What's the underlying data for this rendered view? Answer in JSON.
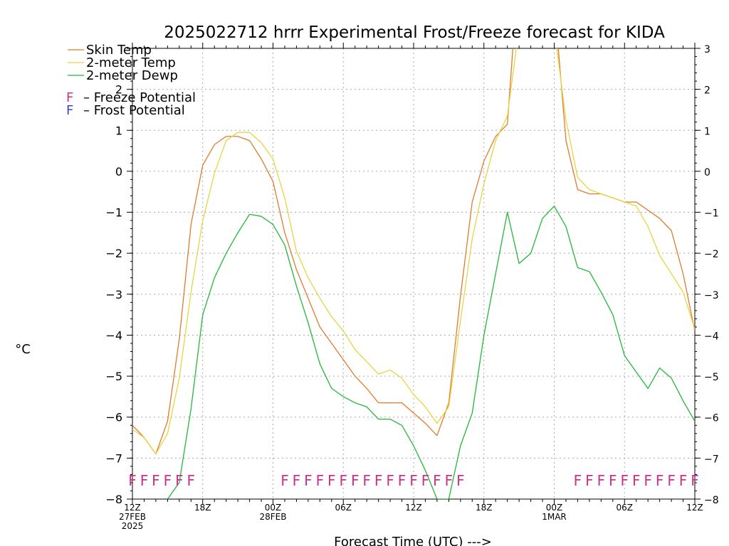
{
  "chart_data": {
    "type": "line",
    "title": "2025022712 hrrr Experimental Frost/Freeze forecast for KIDA",
    "xlabel": "Forecast Time (UTC) --->",
    "ylabel": "°C",
    "ylim": [
      -8,
      3
    ],
    "xlim": [
      0,
      48
    ],
    "yticks": [
      "3",
      "2",
      "1",
      "0",
      "−1",
      "−2",
      "−3",
      "−4",
      "−5",
      "−6",
      "−7",
      "−8"
    ],
    "yticks_left": [
      "2",
      "1",
      "0",
      "−1",
      "−2",
      "−3",
      "−4",
      "−5",
      "−6",
      "−7",
      "−8"
    ],
    "xticks": [
      {
        "x": 0,
        "l1": "12Z",
        "l2": "27FEB",
        "l3": "2025"
      },
      {
        "x": 6,
        "l1": "18Z",
        "l2": "",
        "l3": ""
      },
      {
        "x": 12,
        "l1": "00Z",
        "l2": "28FEB",
        "l3": ""
      },
      {
        "x": 18,
        "l1": "06Z",
        "l2": "",
        "l3": ""
      },
      {
        "x": 24,
        "l1": "12Z",
        "l2": "",
        "l3": ""
      },
      {
        "x": 30,
        "l1": "18Z",
        "l2": "",
        "l3": ""
      },
      {
        "x": 36,
        "l1": "00Z",
        "l2": "1MAR",
        "l3": ""
      },
      {
        "x": 42,
        "l1": "06Z",
        "l2": "",
        "l3": ""
      },
      {
        "x": 48,
        "l1": "12Z",
        "l2": "",
        "l3": ""
      }
    ],
    "grid": true,
    "legend_position": "top-left",
    "series": [
      {
        "name": "Skin Temp",
        "color": "#e07b2e",
        "points": [
          [
            0,
            -6.2
          ],
          [
            1,
            -6.5
          ],
          [
            2,
            -6.9
          ],
          [
            3,
            -6.1
          ],
          [
            4,
            -4.1
          ],
          [
            5,
            -1.3
          ],
          [
            6,
            0.15
          ],
          [
            7,
            0.65
          ],
          [
            8,
            0.85
          ],
          [
            9,
            0.85
          ],
          [
            10,
            0.75
          ],
          [
            11,
            0.3
          ],
          [
            12,
            -0.25
          ],
          [
            13,
            -1.5
          ],
          [
            14,
            -2.4
          ],
          [
            15,
            -3.1
          ],
          [
            16,
            -3.8
          ],
          [
            17,
            -4.2
          ],
          [
            18,
            -4.6
          ],
          [
            19,
            -5.0
          ],
          [
            20,
            -5.3
          ],
          [
            21,
            -5.65
          ],
          [
            22,
            -5.65
          ],
          [
            23,
            -5.65
          ],
          [
            24,
            -5.9
          ],
          [
            25,
            -6.15
          ],
          [
            26,
            -6.45
          ],
          [
            27,
            -5.65
          ],
          [
            28,
            -3.05
          ],
          [
            29,
            -0.75
          ],
          [
            30,
            0.25
          ],
          [
            31,
            0.85
          ],
          [
            32,
            1.15
          ],
          [
            32.6,
            3.5
          ],
          [
            36.2,
            3.5
          ],
          [
            37,
            0.75
          ],
          [
            38,
            -0.45
          ],
          [
            39,
            -0.55
          ],
          [
            40,
            -0.55
          ],
          [
            41,
            -0.65
          ],
          [
            42,
            -0.75
          ],
          [
            43,
            -0.75
          ],
          [
            44,
            -0.95
          ],
          [
            45,
            -1.15
          ],
          [
            46,
            -1.45
          ],
          [
            47,
            -2.5
          ],
          [
            48,
            -3.9
          ]
        ]
      },
      {
        "name": "2-meter Temp",
        "color": "#e8d440",
        "points": [
          [
            0,
            -6.3
          ],
          [
            1,
            -6.5
          ],
          [
            2,
            -6.9
          ],
          [
            3,
            -6.4
          ],
          [
            4,
            -5.05
          ],
          [
            5,
            -2.95
          ],
          [
            6,
            -1.2
          ],
          [
            7,
            -0.05
          ],
          [
            8,
            0.75
          ],
          [
            9,
            0.95
          ],
          [
            10,
            0.95
          ],
          [
            11,
            0.7
          ],
          [
            12,
            0.3
          ],
          [
            13,
            -0.65
          ],
          [
            14,
            -1.95
          ],
          [
            15,
            -2.6
          ],
          [
            16,
            -3.1
          ],
          [
            17,
            -3.55
          ],
          [
            18,
            -3.9
          ],
          [
            19,
            -4.35
          ],
          [
            20,
            -4.65
          ],
          [
            21,
            -4.95
          ],
          [
            22,
            -4.85
          ],
          [
            23,
            -5.05
          ],
          [
            24,
            -5.45
          ],
          [
            25,
            -5.75
          ],
          [
            26,
            -6.15
          ],
          [
            27,
            -5.75
          ],
          [
            28,
            -3.65
          ],
          [
            29,
            -1.65
          ],
          [
            30,
            -0.3
          ],
          [
            31,
            0.75
          ],
          [
            32,
            1.35
          ],
          [
            33,
            3.5
          ],
          [
            36,
            3.5
          ],
          [
            37,
            1.25
          ],
          [
            38,
            -0.15
          ],
          [
            39,
            -0.45
          ],
          [
            40,
            -0.55
          ],
          [
            41,
            -0.65
          ],
          [
            42,
            -0.75
          ],
          [
            43,
            -0.85
          ],
          [
            44,
            -1.35
          ],
          [
            45,
            -2.05
          ],
          [
            46,
            -2.5
          ],
          [
            47,
            -2.95
          ],
          [
            48,
            -3.85
          ]
        ]
      },
      {
        "name": "2-meter Dewp",
        "color": "#22b83a",
        "points": [
          [
            3,
            -8.0
          ],
          [
            4,
            -7.6
          ],
          [
            5,
            -5.8
          ],
          [
            6,
            -3.5
          ],
          [
            7,
            -2.6
          ],
          [
            8,
            -2.0
          ],
          [
            9,
            -1.5
          ],
          [
            10,
            -1.05
          ],
          [
            11,
            -1.1
          ],
          [
            12,
            -1.3
          ],
          [
            13,
            -1.8
          ],
          [
            14,
            -2.8
          ],
          [
            15,
            -3.7
          ],
          [
            16,
            -4.7
          ],
          [
            17,
            -5.3
          ],
          [
            18,
            -5.5
          ],
          [
            19,
            -5.65
          ],
          [
            20,
            -5.75
          ],
          [
            21,
            -6.05
          ],
          [
            22,
            -6.05
          ],
          [
            23,
            -6.2
          ],
          [
            24,
            -6.7
          ],
          [
            25,
            -7.3
          ],
          [
            26,
            -8.0
          ],
          [
            27,
            -8.0
          ],
          [
            28,
            -6.7
          ],
          [
            29,
            -5.9
          ],
          [
            30,
            -4.0
          ],
          [
            31,
            -2.5
          ],
          [
            32,
            -1.0
          ],
          [
            33,
            -2.25
          ],
          [
            34,
            -2.0
          ],
          [
            35,
            -1.15
          ],
          [
            36,
            -0.85
          ],
          [
            37,
            -1.35
          ],
          [
            38,
            -2.35
          ],
          [
            39,
            -2.45
          ],
          [
            40,
            -2.95
          ],
          [
            41,
            -3.5
          ],
          [
            42,
            -4.5
          ],
          [
            43,
            -4.9
          ],
          [
            44,
            -5.3
          ],
          [
            45,
            -4.8
          ],
          [
            46,
            -5.05
          ],
          [
            47,
            -5.6
          ],
          [
            48,
            -6.1
          ]
        ]
      }
    ],
    "legend_entries": [
      {
        "text": "Skin Temp",
        "color": "#e07b2e"
      },
      {
        "text": "2-meter Temp",
        "color": "#e8d440"
      },
      {
        "text": "2-meter Dewp",
        "color": "#22b83a"
      }
    ],
    "potential_legend": [
      {
        "symbol": "F",
        "color": "#c8328c",
        "text": "– Freeze Potential"
      },
      {
        "symbol": "F",
        "color": "#3c46c8",
        "text": "– Frost Potential"
      }
    ],
    "freeze_flags": {
      "symbol": "F",
      "color": "#c8328c",
      "y": -7.55,
      "x": [
        0,
        1,
        2,
        3,
        4,
        5,
        13,
        14,
        15,
        16,
        17,
        18,
        19,
        20,
        21,
        22,
        23,
        24,
        25,
        26,
        27,
        28,
        38,
        39,
        40,
        41,
        42,
        43,
        44,
        45,
        46,
        47,
        48
      ]
    }
  }
}
